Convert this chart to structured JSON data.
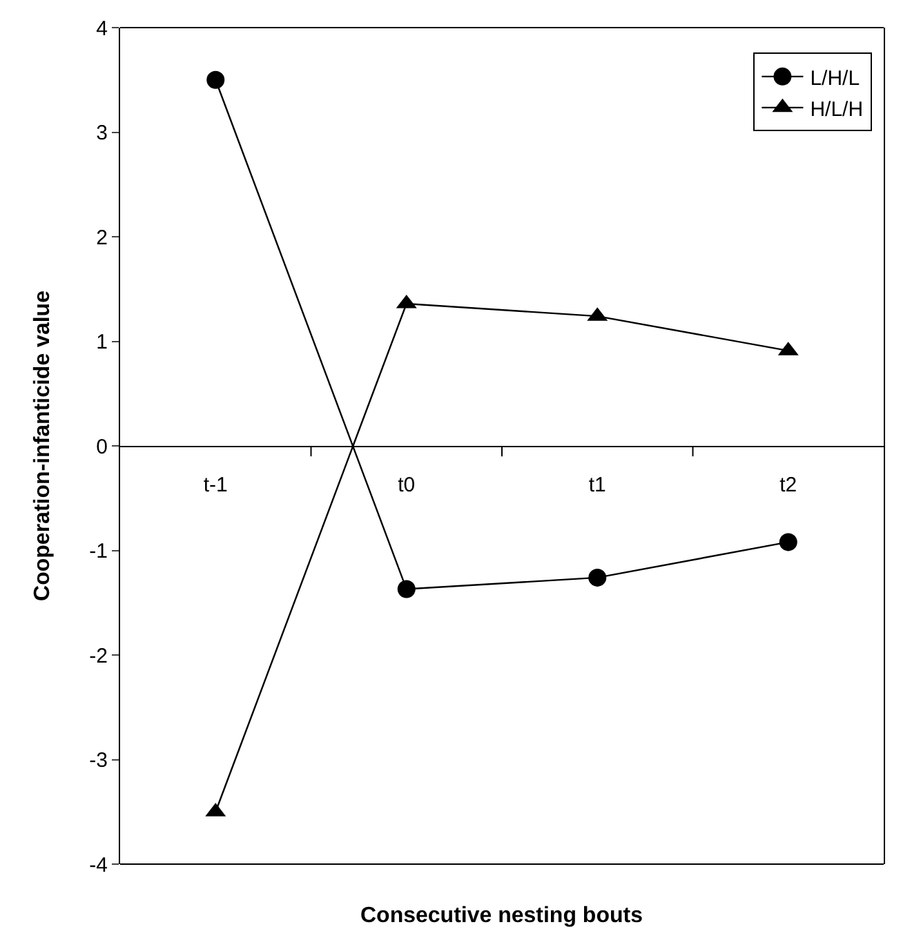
{
  "chart_data": {
    "type": "line",
    "xlabel": "Consecutive nesting bouts",
    "ylabel": "Cooperation-infanticide value",
    "categories": [
      "t-1",
      "t0",
      "t1",
      "t2"
    ],
    "series": [
      {
        "name": "L/H/L",
        "color": "#000000",
        "marker": "circle",
        "values": [
          3.5,
          -1.37,
          -1.26,
          -0.92
        ]
      },
      {
        "name": "H/L/H",
        "color": "#000000",
        "marker": "triangle",
        "values": [
          -3.5,
          1.36,
          1.24,
          0.91
        ]
      }
    ],
    "ylim": [
      -4,
      4
    ],
    "yticks": [
      -4,
      -3,
      -2,
      -1,
      0,
      1,
      2,
      3,
      4
    ],
    "legend": "top right",
    "line_style": "solid"
  }
}
